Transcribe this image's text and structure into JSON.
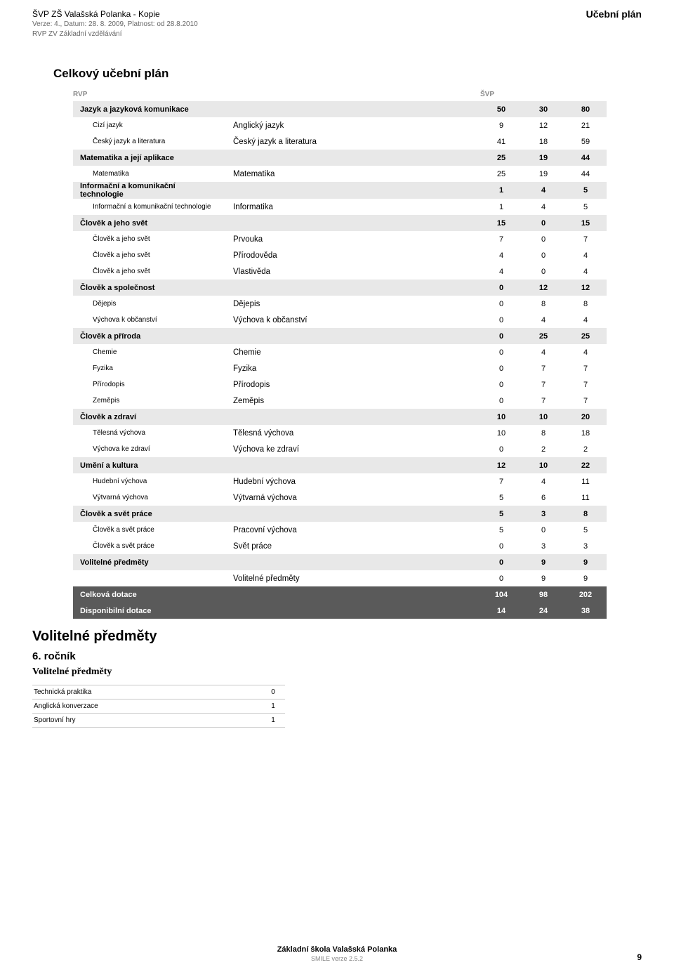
{
  "header": {
    "school": "ŠVP ZŠ Valašská Polanka - Kopie",
    "ver": "Verze: 4., Datum: 28. 8. 2009, Platnost: od 28.8.2010",
    "rvp": "RVP ZV Základní vzdělávání",
    "right_title": "Učební plán"
  },
  "section_title": "Celkový učební plán",
  "thead": {
    "left": "RVP",
    "right": "ŠVP"
  },
  "rows": [
    {
      "type": "cat",
      "c1": "Jazyk a jazyková komunikace",
      "c2": "",
      "n": [
        "50",
        "30",
        "80"
      ]
    },
    {
      "type": "sub",
      "c1": "Cizí jazyk",
      "c2": "Anglický jazyk",
      "n": [
        "9",
        "12",
        "21"
      ]
    },
    {
      "type": "sub",
      "c1": "Český jazyk a literatura",
      "c2": "Český jazyk a literatura",
      "n": [
        "41",
        "18",
        "59"
      ]
    },
    {
      "type": "cat",
      "c1": "Matematika a její aplikace",
      "c2": "",
      "n": [
        "25",
        "19",
        "44"
      ]
    },
    {
      "type": "sub",
      "c1": "Matematika",
      "c2": "Matematika",
      "n": [
        "25",
        "19",
        "44"
      ]
    },
    {
      "type": "cat",
      "c1": "Informační a komunikační technologie",
      "c2": "",
      "n": [
        "1",
        "4",
        "5"
      ]
    },
    {
      "type": "sub",
      "c1": "Informační a komunikační technologie",
      "c2": "Informatika",
      "n": [
        "1",
        "4",
        "5"
      ]
    },
    {
      "type": "cat",
      "c1": "Člověk a jeho svět",
      "c2": "",
      "n": [
        "15",
        "0",
        "15"
      ]
    },
    {
      "type": "sub",
      "c1": "Člověk a jeho svět",
      "c2": "Prvouka",
      "n": [
        "7",
        "0",
        "7"
      ]
    },
    {
      "type": "sub",
      "c1": "Člověk a jeho svět",
      "c2": "Přírodověda",
      "n": [
        "4",
        "0",
        "4"
      ]
    },
    {
      "type": "sub",
      "c1": "Člověk a jeho svět",
      "c2": "Vlastivěda",
      "n": [
        "4",
        "0",
        "4"
      ]
    },
    {
      "type": "cat",
      "c1": "Člověk a společnost",
      "c2": "",
      "n": [
        "0",
        "12",
        "12"
      ]
    },
    {
      "type": "sub",
      "c1": "Dějepis",
      "c2": "Dějepis",
      "n": [
        "0",
        "8",
        "8"
      ]
    },
    {
      "type": "sub",
      "c1": "Výchova k občanství",
      "c2": "Výchova k občanství",
      "n": [
        "0",
        "4",
        "4"
      ]
    },
    {
      "type": "cat",
      "c1": "Člověk a příroda",
      "c2": "",
      "n": [
        "0",
        "25",
        "25"
      ]
    },
    {
      "type": "sub",
      "c1": "Chemie",
      "c2": "Chemie",
      "n": [
        "0",
        "4",
        "4"
      ]
    },
    {
      "type": "sub",
      "c1": "Fyzika",
      "c2": "Fyzika",
      "n": [
        "0",
        "7",
        "7"
      ]
    },
    {
      "type": "sub",
      "c1": "Přírodopis",
      "c2": "Přírodopis",
      "n": [
        "0",
        "7",
        "7"
      ]
    },
    {
      "type": "sub",
      "c1": "Zeměpis",
      "c2": "Zeměpis",
      "n": [
        "0",
        "7",
        "7"
      ]
    },
    {
      "type": "cat",
      "c1": "Člověk a zdraví",
      "c2": "",
      "n": [
        "10",
        "10",
        "20"
      ]
    },
    {
      "type": "sub",
      "c1": "Tělesná výchova",
      "c2": "Tělesná výchova",
      "n": [
        "10",
        "8",
        "18"
      ]
    },
    {
      "type": "sub",
      "c1": "Výchova ke zdraví",
      "c2": "Výchova ke zdraví",
      "n": [
        "0",
        "2",
        "2"
      ]
    },
    {
      "type": "cat",
      "c1": "Umění a kultura",
      "c2": "",
      "n": [
        "12",
        "10",
        "22"
      ]
    },
    {
      "type": "sub",
      "c1": "Hudební výchova",
      "c2": "Hudební výchova",
      "n": [
        "7",
        "4",
        "11"
      ]
    },
    {
      "type": "sub",
      "c1": "Výtvarná výchova",
      "c2": "Výtvarná výchova",
      "n": [
        "5",
        "6",
        "11"
      ]
    },
    {
      "type": "cat",
      "c1": "Člověk a svět práce",
      "c2": "",
      "n": [
        "5",
        "3",
        "8"
      ]
    },
    {
      "type": "sub",
      "c1": "Člověk a svět práce",
      "c2": "Pracovní výchova",
      "n": [
        "5",
        "0",
        "5"
      ]
    },
    {
      "type": "sub",
      "c1": "Člověk a svět práce",
      "c2": "Svět práce",
      "n": [
        "0",
        "3",
        "3"
      ]
    },
    {
      "type": "cat",
      "c1": "Volitelné předměty",
      "c2": "",
      "n": [
        "0",
        "9",
        "9"
      ]
    },
    {
      "type": "sub",
      "c1": "",
      "c2": "Volitelné předměty",
      "n": [
        "0",
        "9",
        "9"
      ]
    },
    {
      "type": "tot",
      "c1": "Celková dotace",
      "c2": "",
      "n": [
        "104",
        "98",
        "202"
      ]
    },
    {
      "type": "tot",
      "c1": "Disponibilní dotace",
      "c2": "",
      "n": [
        "14",
        "24",
        "38"
      ]
    }
  ],
  "h2": "Volitelné předměty",
  "h3": "6. ročník",
  "h4": "Volitelné předměty",
  "mini_rows": [
    {
      "name": "Technická praktika",
      "val": "0"
    },
    {
      "name": "Anglická konverzace",
      "val": "1"
    },
    {
      "name": "Sportovní hry",
      "val": "1"
    }
  ],
  "footer": {
    "school": "Základní škola Valašská Polanka",
    "ver": "SMILE verze 2.5.2",
    "page": "9"
  }
}
